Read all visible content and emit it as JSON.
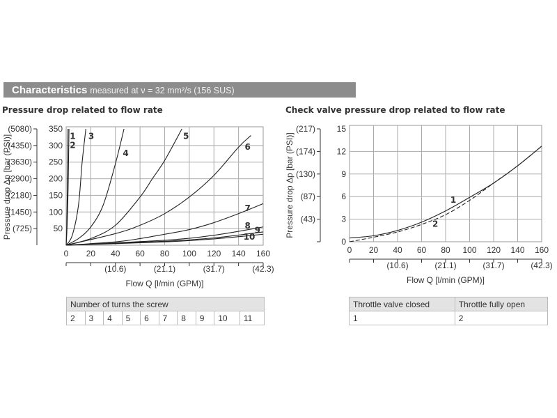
{
  "header": {
    "title": "Characteristics",
    "subtitle": "measured at ν = 32 mm²/s (156 SUS)"
  },
  "chart_data": [
    {
      "type": "line",
      "title": "Pressure drop related to flow rate",
      "xlabel": "Flow Q [l/min (GPM)]",
      "ylabel": "Pressure drop Δp [bar (PSI)]",
      "xlim": [
        0,
        160
      ],
      "ylim": [
        0,
        350
      ],
      "grid": true,
      "xticks": [
        "0",
        "20",
        "40",
        "60",
        "80",
        "100",
        "120",
        "140",
        "160"
      ],
      "xticks_secondary": [
        {
          "x": 40,
          "label": "(10.6)"
        },
        {
          "x": 80,
          "label": "(21.1)"
        },
        {
          "x": 120,
          "label": "(31.7)"
        },
        {
          "x": 160,
          "label": "(42.3)"
        }
      ],
      "yticks": [
        "50",
        "100",
        "150",
        "200",
        "250",
        "300",
        "350"
      ],
      "yticks_secondary": [
        "(725)",
        "(1450)",
        "(2180)",
        "(2900)",
        "(3630)",
        "(4350)",
        "(5080)"
      ],
      "series": [
        {
          "name": "1",
          "dash": false,
          "points": [
            [
              0,
              0
            ],
            [
              0.5,
              60
            ],
            [
              1,
              170
            ],
            [
              1.5,
              350
            ]
          ],
          "label_at": [
            3,
            320
          ]
        },
        {
          "name": "2",
          "dash": false,
          "points": [
            [
              0,
              0
            ],
            [
              0.8,
              60
            ],
            [
              1.6,
              170
            ],
            [
              2.3,
              350
            ]
          ],
          "label_at": [
            3,
            292
          ]
        },
        {
          "name": "3",
          "dash": false,
          "points": [
            [
              0,
              0
            ],
            [
              5,
              30
            ],
            [
              10,
              120
            ],
            [
              13,
              250
            ],
            [
              16,
              350
            ]
          ],
          "label_at": [
            18,
            320
          ]
        },
        {
          "name": "4",
          "dash": false,
          "points": [
            [
              0,
              0
            ],
            [
              10,
              20
            ],
            [
              20,
              55
            ],
            [
              30,
              120
            ],
            [
              40,
              245
            ],
            [
              47,
              350
            ]
          ],
          "label_at": [
            46,
            268
          ]
        },
        {
          "name": "5",
          "dash": false,
          "points": [
            [
              0,
              0
            ],
            [
              20,
              20
            ],
            [
              40,
              60
            ],
            [
              60,
              145
            ],
            [
              70,
              200
            ],
            [
              80,
              255
            ],
            [
              94,
              350
            ]
          ],
          "label_at": [
            95,
            320
          ]
        },
        {
          "name": "6",
          "dash": false,
          "points": [
            [
              0,
              0
            ],
            [
              40,
              35
            ],
            [
              60,
              60
            ],
            [
              80,
              95
            ],
            [
              100,
              145
            ],
            [
              120,
              210
            ],
            [
              140,
              295
            ],
            [
              150,
              330
            ]
          ],
          "label_at": [
            145,
            287
          ]
        },
        {
          "name": "7",
          "dash": false,
          "points": [
            [
              0,
              0
            ],
            [
              40,
              10
            ],
            [
              60,
              20
            ],
            [
              80,
              33
            ],
            [
              100,
              47
            ],
            [
              120,
              68
            ],
            [
              140,
              95
            ],
            [
              160,
              125
            ]
          ],
          "label_at": [
            145,
            103
          ]
        },
        {
          "name": "8",
          "dash": false,
          "points": [
            [
              0,
              0
            ],
            [
              80,
              15
            ],
            [
              120,
              30
            ],
            [
              160,
              55
            ]
          ],
          "label_at": [
            145,
            50
          ]
        },
        {
          "name": "9",
          "dash": false,
          "points": [
            [
              0,
              0
            ],
            [
              80,
              12
            ],
            [
              120,
              22
            ],
            [
              160,
              40
            ]
          ],
          "label_at": [
            153,
            37
          ]
        },
        {
          "name": "10",
          "dash": false,
          "points": [
            [
              0,
              0
            ],
            [
              80,
              10
            ],
            [
              120,
              19
            ],
            [
              160,
              33
            ]
          ],
          "label_at": [
            144,
            17
          ]
        }
      ]
    },
    {
      "type": "line",
      "title": "Check valve pressure drop related to flow rate",
      "xlabel": "Flow Q [l/min (GPM)]",
      "ylabel": "Pressure drop Δp [bar (PSI)]",
      "xlim": [
        0,
        160
      ],
      "ylim": [
        0,
        15
      ],
      "grid": true,
      "xticks": [
        "0",
        "20",
        "40",
        "60",
        "80",
        "100",
        "120",
        "140",
        "160"
      ],
      "xticks_secondary": [
        {
          "x": 40,
          "label": "(10.6)"
        },
        {
          "x": 80,
          "label": "(21.1)"
        },
        {
          "x": 120,
          "label": "(31.7)"
        },
        {
          "x": 160,
          "label": "(42.3)"
        }
      ],
      "yticks": [
        "0",
        "3",
        "6",
        "9",
        "12",
        "15"
      ],
      "yticks_secondary": [
        "",
        "(43)",
        "(87)",
        "(130)",
        "(174)",
        "(217)"
      ],
      "series": [
        {
          "name": "1",
          "dash": false,
          "points": [
            [
              0,
              0.5
            ],
            [
              20,
              0.8
            ],
            [
              40,
              1.5
            ],
            [
              60,
              2.6
            ],
            [
              80,
              4.1
            ],
            [
              100,
              5.9
            ],
            [
              120,
              7.8
            ],
            [
              140,
              10.1
            ],
            [
              160,
              12.7
            ]
          ],
          "label_at": [
            84,
            5.2
          ]
        },
        {
          "name": "2",
          "dash": true,
          "points": [
            [
              0,
              0
            ],
            [
              20,
              0.6
            ],
            [
              40,
              1.3
            ],
            [
              60,
              2.3
            ],
            [
              80,
              3.6
            ],
            [
              100,
              5.5
            ],
            [
              120,
              7.8
            ],
            [
              140,
              10.1
            ],
            [
              160,
              12.7
            ]
          ],
          "label_at": [
            69,
            2
          ]
        }
      ]
    }
  ],
  "tables": {
    "left": {
      "header": "Number of turns the screw",
      "values": [
        "2",
        "3",
        "4",
        "5",
        "6",
        "7",
        "8",
        "9",
        "10",
        "11"
      ]
    },
    "right": {
      "headers": [
        "Throttle valve closed",
        "Throttle fully open"
      ],
      "values": [
        "1",
        "2"
      ]
    }
  }
}
